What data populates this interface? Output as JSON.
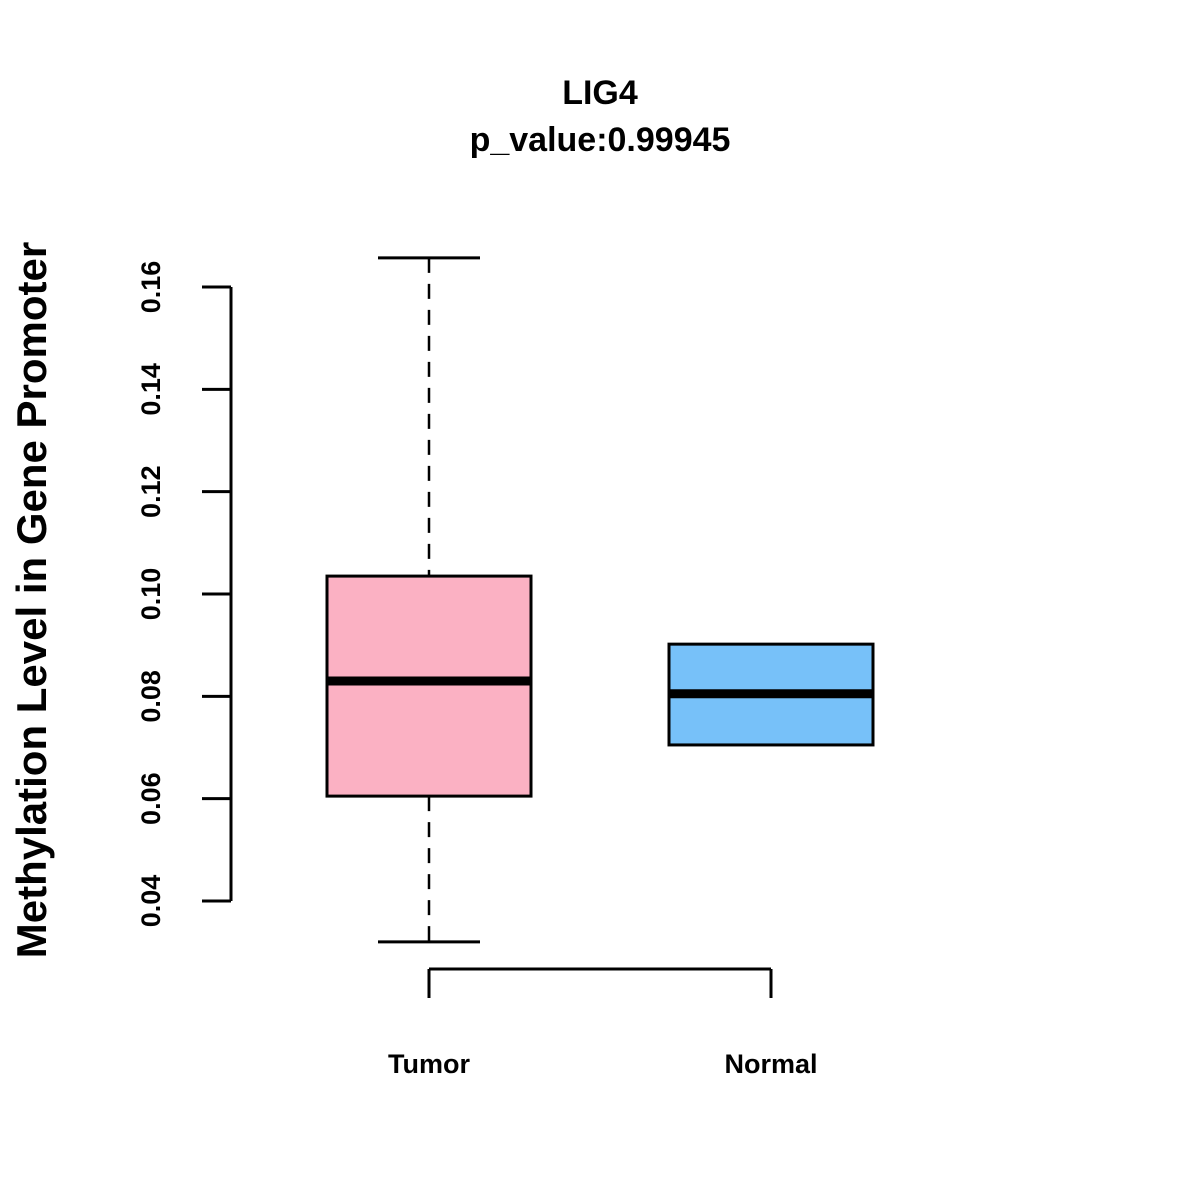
{
  "chart_data": {
    "type": "box",
    "title": "LIG4",
    "subtitle": "p_value:0.99945",
    "xlabel": "",
    "ylabel": "Methylation Level in Gene Promoter",
    "yticks": [
      0.04,
      0.06,
      0.08,
      0.1,
      0.12,
      0.14,
      0.16
    ],
    "ytick_labels": [
      "0.04",
      "0.06",
      "0.08",
      "0.10",
      "0.12",
      "0.14",
      "0.16"
    ],
    "categories": [
      "Tumor",
      "Normal"
    ],
    "boxes": [
      {
        "name": "Tumor",
        "whisker_low": 0.032,
        "q1": 0.0605,
        "median": 0.083,
        "q3": 0.1035,
        "whisker_high": 0.1657,
        "color": "#FBB1C3"
      },
      {
        "name": "Normal",
        "whisker_low": 0.0705,
        "q1": 0.0705,
        "median": 0.0805,
        "q3": 0.0902,
        "whisker_high": 0.0902,
        "color": "#77C1F9"
      }
    ],
    "grid": false
  }
}
